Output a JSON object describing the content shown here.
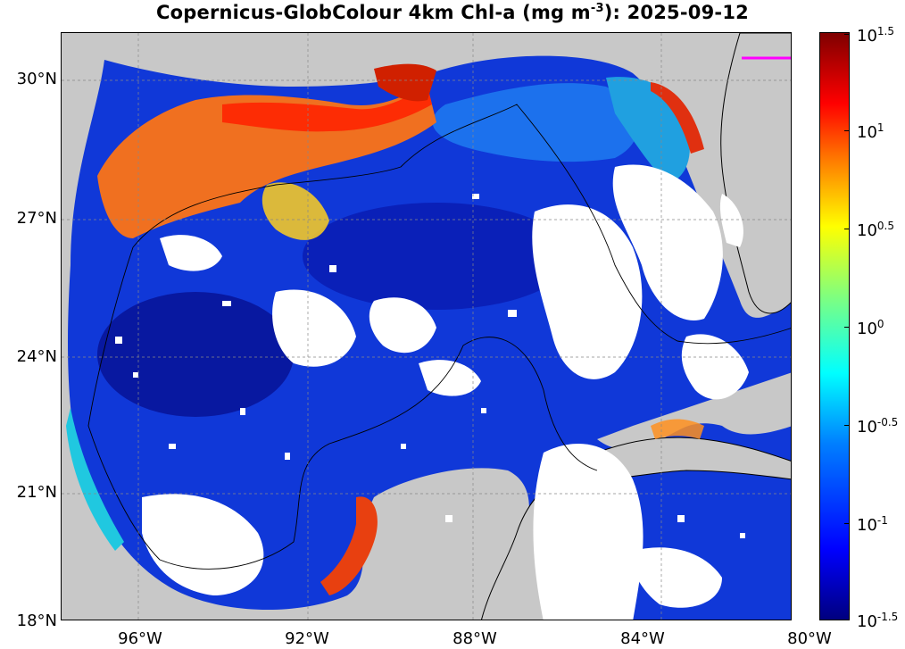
{
  "title": {
    "prefix": "Copernicus-GlobColour 4km Chl-a (mg m",
    "exponent": "-3",
    "suffix": "): 2025-09-12"
  },
  "axes": {
    "lat_ticks": [
      "30°N",
      "27°N",
      "24°N",
      "21°N",
      "18°N"
    ],
    "lon_ticks": [
      "96°W",
      "92°W",
      "88°W",
      "84°W",
      "80°W"
    ]
  },
  "colorbar": {
    "base": "10",
    "exponents": [
      "1.5",
      "1",
      "0.5",
      "0",
      "-0.5",
      "-1",
      "-1.5"
    ]
  },
  "colors": {
    "land": "#c8c8c8",
    "no_data": "#ffffff",
    "deep_ocean": "#1030c8",
    "high_chl": "#e02000",
    "marker": "#ff00ff"
  }
}
